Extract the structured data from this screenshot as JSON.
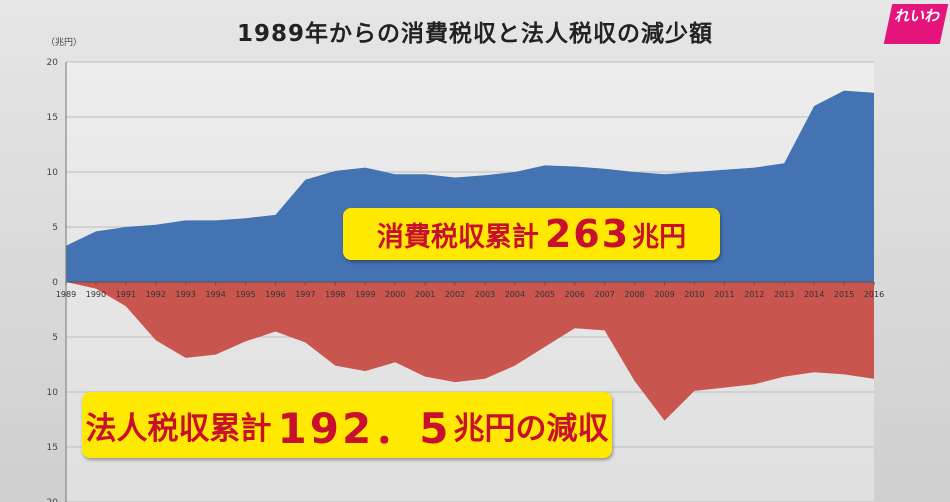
{
  "title": "1989年からの消費税収と法人税収の減少額",
  "unit_label": "（兆円）",
  "logo_text": "れいわ",
  "callouts": {
    "consumption": {
      "label": "消費税収累計",
      "value": "263",
      "suffix": "兆円"
    },
    "corporate": {
      "label": "法人税収累計",
      "value": "192．5",
      "suffix": "兆円の減収"
    }
  },
  "colors": {
    "consumption_area": "#4373b3",
    "corporate_area": "#c9554f",
    "callout_bg": "#ffe900",
    "callout_text": "#c8102e"
  },
  "chart_data": {
    "type": "area",
    "title": "1989年からの消費税収と法人税収の減少額",
    "ylabel": "（兆円）",
    "xlabel": "",
    "ylim": [
      -20,
      20
    ],
    "y_ticks": [
      20,
      15,
      10,
      5,
      0,
      5,
      10,
      15,
      20
    ],
    "grid": true,
    "x": [
      "1989",
      "1990",
      "1991",
      "1992",
      "1993",
      "1994",
      "1995",
      "1996",
      "1997",
      "1998",
      "1999",
      "2000",
      "2001",
      "2002",
      "2003",
      "2004",
      "2005",
      "2006",
      "2007",
      "2008",
      "2009",
      "2010",
      "2011",
      "2012",
      "2013",
      "2014",
      "2015",
      "2016"
    ],
    "series": [
      {
        "key": "consumption",
        "values": [
          3.3,
          4.6,
          5.0,
          5.2,
          5.6,
          5.6,
          5.8,
          6.1,
          9.3,
          10.1,
          10.4,
          9.8,
          9.8,
          9.5,
          9.7,
          10.0,
          10.6,
          10.5,
          10.3,
          10.0,
          9.8,
          10.0,
          10.2,
          10.4,
          10.8,
          16.0,
          17.4,
          17.2
        ]
      },
      {
        "key": "corporate",
        "values": [
          0.0,
          -0.6,
          -2.2,
          -5.3,
          -6.9,
          -6.6,
          -5.4,
          -4.5,
          -5.5,
          -7.6,
          -8.1,
          -7.3,
          -8.6,
          -9.1,
          -8.8,
          -7.6,
          -5.9,
          -4.2,
          -4.4,
          -9.0,
          -12.6,
          -9.9,
          -9.6,
          -9.3,
          -8.6,
          -8.2,
          -8.4,
          -8.8
        ]
      }
    ]
  }
}
